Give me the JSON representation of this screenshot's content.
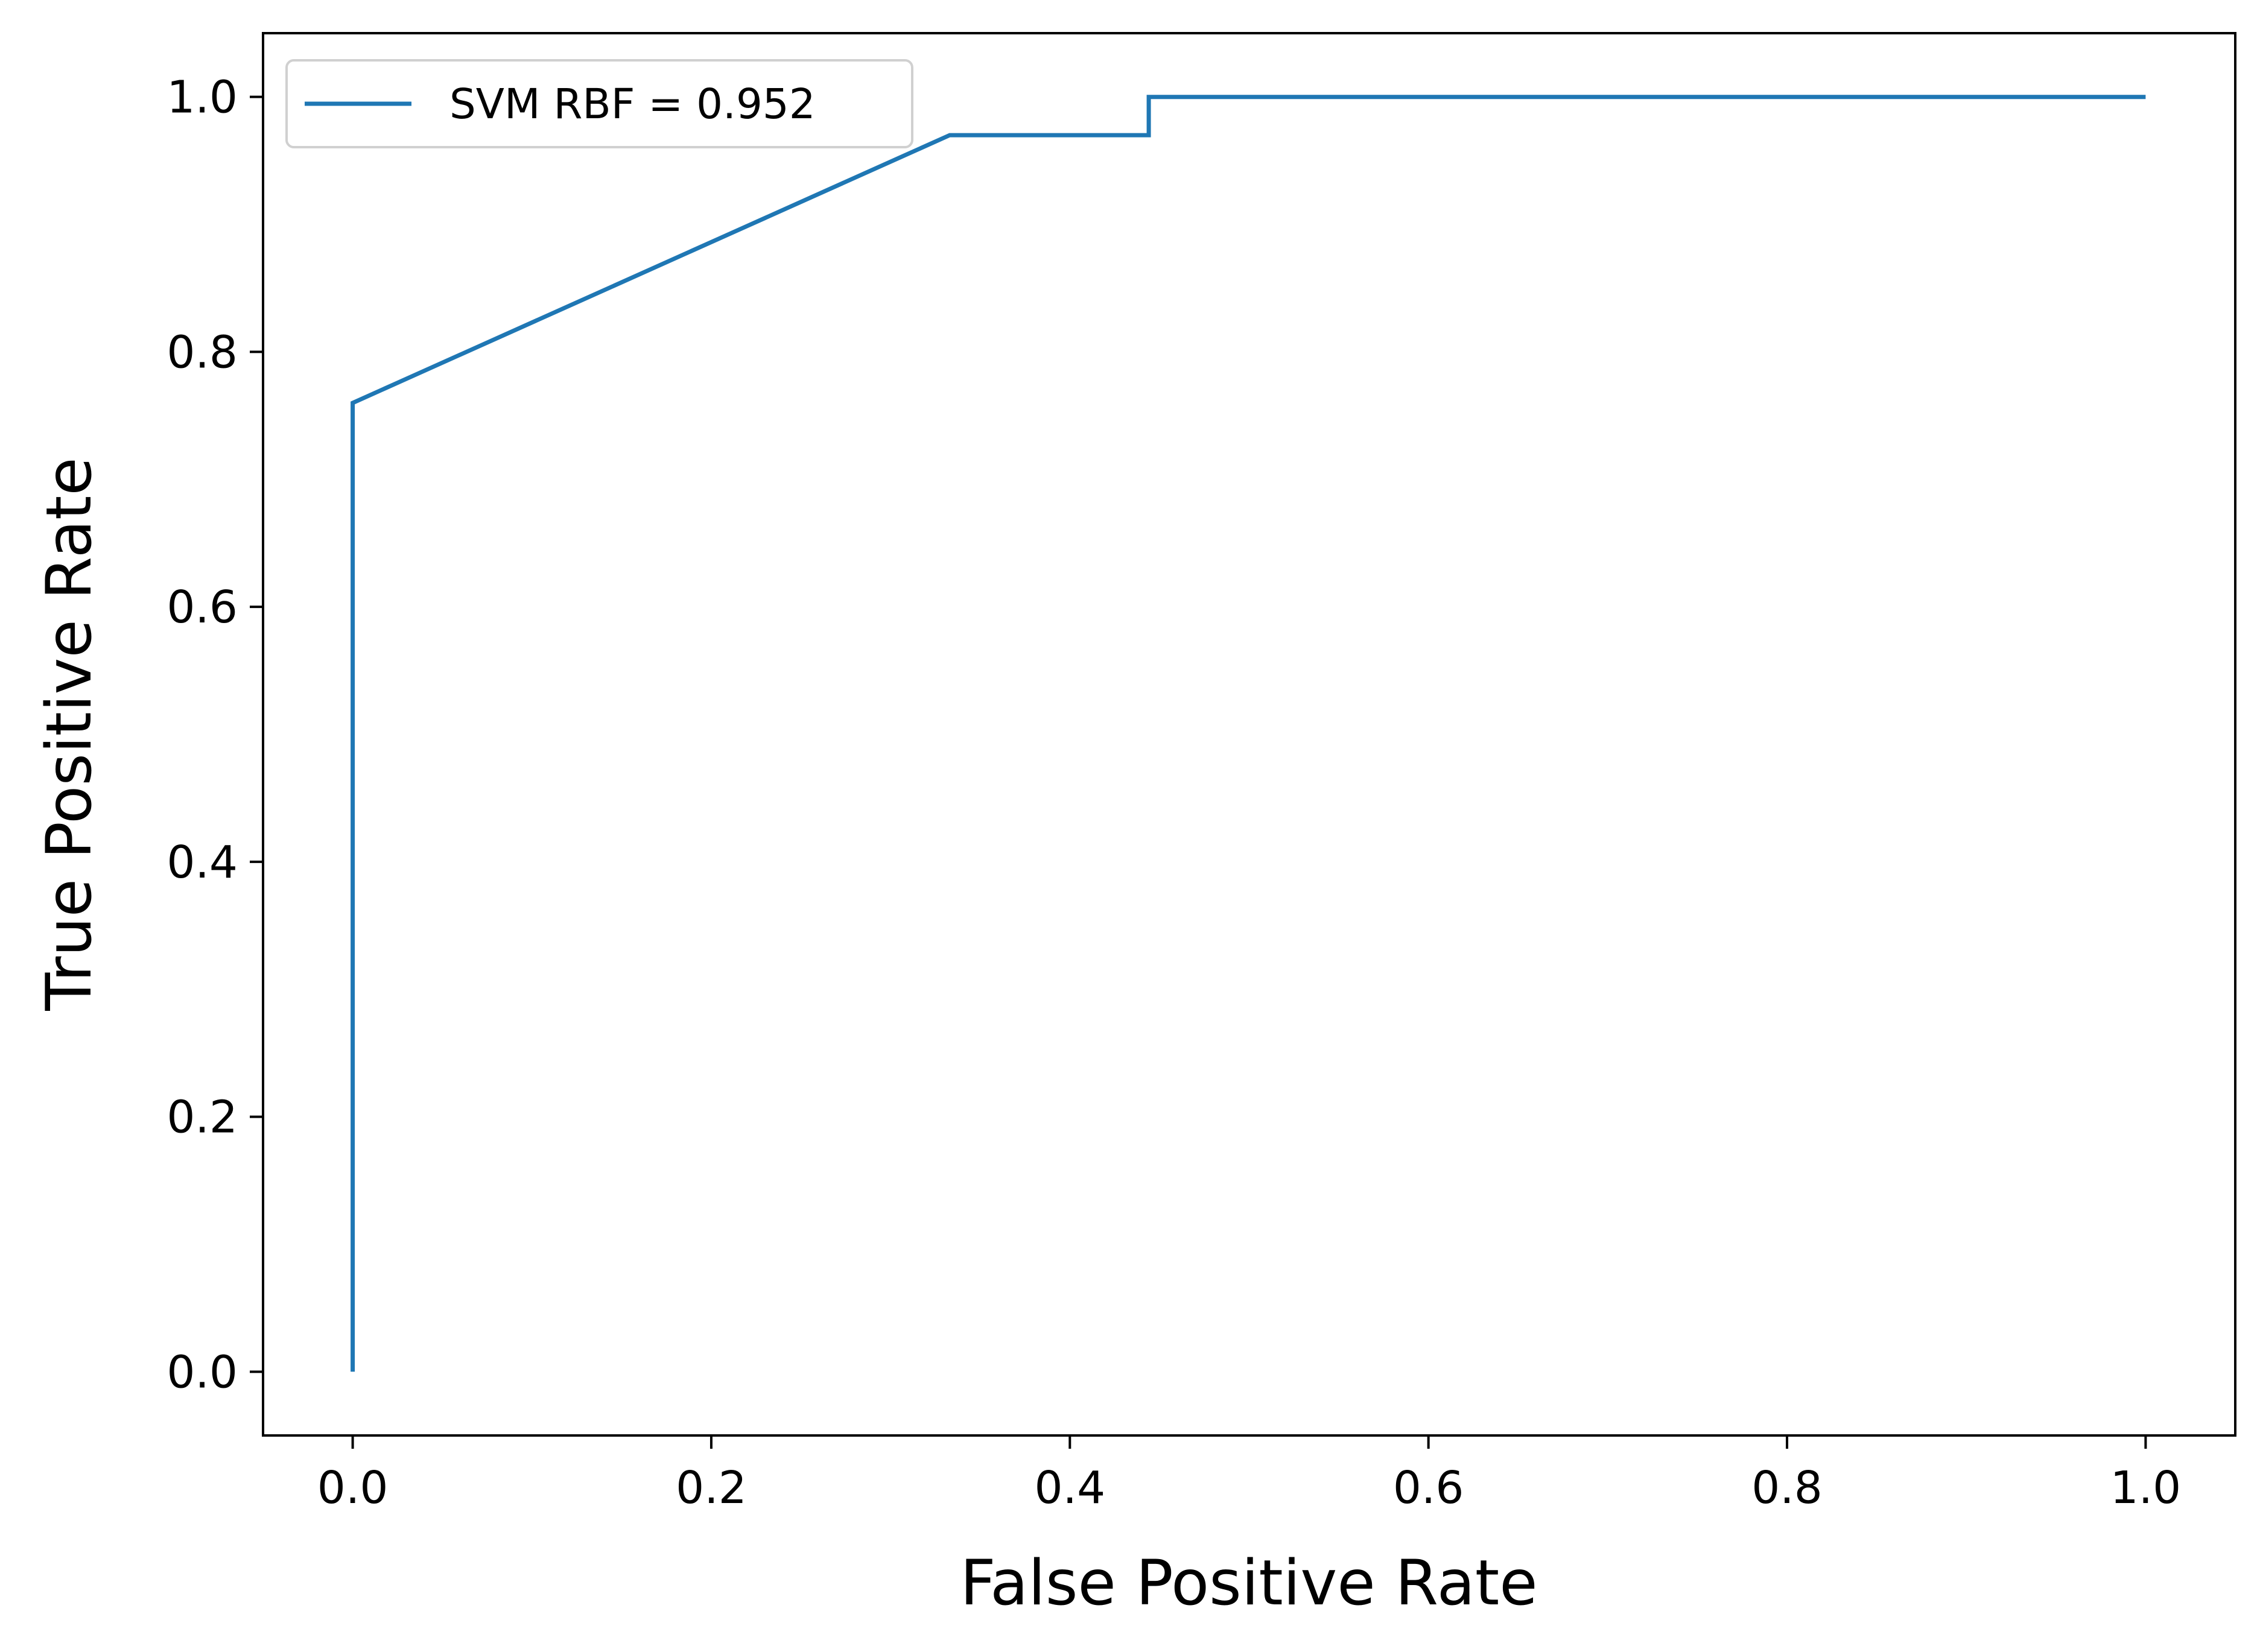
{
  "chart_data": {
    "type": "line",
    "title": "",
    "xlabel": "False Positive Rate",
    "ylabel": "True Positive Rate",
    "xlim": [
      -0.05,
      1.05
    ],
    "ylim": [
      -0.05,
      1.05
    ],
    "x_ticks": [
      0.0,
      0.2,
      0.4,
      0.6,
      0.8,
      1.0
    ],
    "y_ticks": [
      0.0,
      0.2,
      0.4,
      0.6,
      0.8,
      1.0
    ],
    "x_tick_labels": [
      "0.0",
      "0.2",
      "0.4",
      "0.6",
      "0.8",
      "1.0"
    ],
    "y_tick_labels": [
      "0.0",
      "0.2",
      "0.4",
      "0.6",
      "0.8",
      "1.0"
    ],
    "grid": false,
    "legend_position": "top-left",
    "series": [
      {
        "name": "SVM RBF = 0.952",
        "color": "#1f77b4",
        "x": [
          0.0,
          0.0,
          0.333,
          0.444,
          0.444,
          1.0
        ],
        "y": [
          0.0,
          0.76,
          0.97,
          0.97,
          1.0,
          1.0
        ]
      }
    ]
  }
}
